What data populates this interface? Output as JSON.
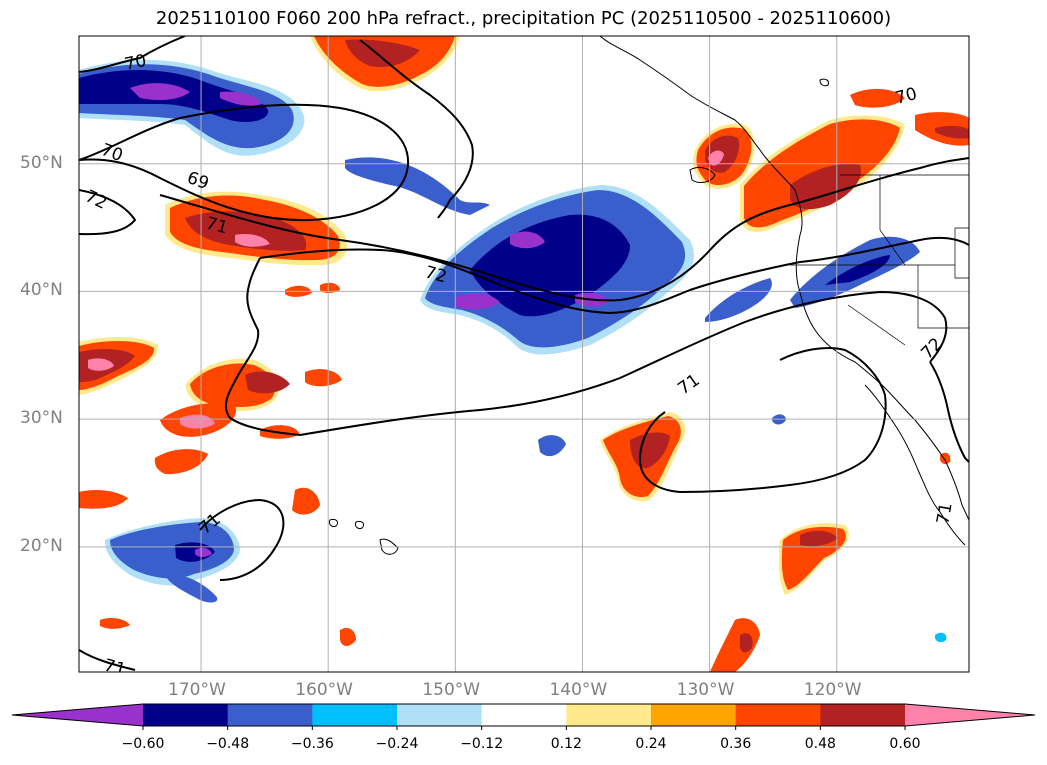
{
  "title": "2025110100 F060 200 hPa refract., precipitation PC (2025110500 - 2025110600)",
  "map": {
    "lon_ticks": [
      {
        "lon": -170,
        "label": "170°W"
      },
      {
        "lon": -160,
        "label": "160°W"
      },
      {
        "lon": -150,
        "label": "150°W"
      },
      {
        "lon": -140,
        "label": "140°W"
      },
      {
        "lon": -130,
        "label": "130°W"
      },
      {
        "lon": -120,
        "label": "120°W"
      }
    ],
    "lat_ticks": [
      {
        "lat": 50,
        "label": "50°N"
      },
      {
        "lat": 40,
        "label": "40°N"
      },
      {
        "lat": 30,
        "label": "30°N"
      },
      {
        "lat": 20,
        "label": "20°N"
      }
    ],
    "contour_labels": [
      "70",
      "70",
      "70",
      "69",
      "72",
      "71",
      "72",
      "71",
      "72",
      "71",
      "71",
      "71"
    ]
  },
  "colorbar": {
    "bounds": [
      "−0.60",
      "−0.48",
      "−0.36",
      "−0.24",
      "−0.12",
      "0.12",
      "0.24",
      "0.36",
      "0.48",
      "0.60"
    ],
    "colors": [
      "#9932cc",
      "#00008b",
      "#3a5fcd",
      "#00bfff",
      "#b0e0f8",
      "#ffffff",
      "#ffe98a",
      "#ffa500",
      "#ff4500",
      "#b22222",
      "#ff82ab"
    ]
  }
}
